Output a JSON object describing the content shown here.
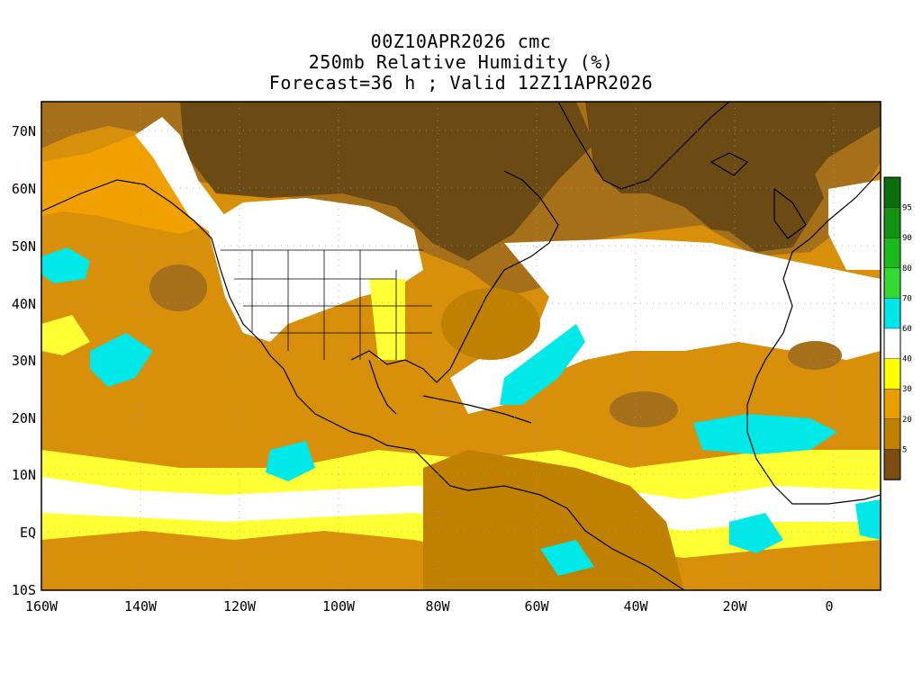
{
  "title": {
    "line1": "00Z10APR2026 cmc",
    "line2": "250mb Relative Humidity (%)",
    "line3": "Forecast=36 h ; Valid 12Z11APR2026"
  },
  "axes": {
    "lat_labels": [
      "70N",
      "60N",
      "50N",
      "40N",
      "30N",
      "20N",
      "10N",
      "EQ",
      "10S"
    ],
    "lon_labels": [
      "160W",
      "140W",
      "120W",
      "100W",
      "80W",
      "60W",
      "40W",
      "20W",
      "0"
    ]
  },
  "colorbar": {
    "tick_labels": [
      "95",
      "90",
      "80",
      "70",
      "60",
      "40",
      "30",
      "20",
      "5"
    ],
    "colors": [
      "#0a6e0a",
      "#129412",
      "#1cb81c",
      "#34d934",
      "#00e5e5",
      "#ffffff",
      "#ffff00",
      "#e8a000",
      "#c08000",
      "#7a4d10"
    ]
  },
  "map": {
    "colors": {
      "very_dry": "#6b4a14",
      "dry": "#a6701a",
      "moderate": "#d8900a",
      "orange": "#f0a000",
      "yellow": "#ffff33",
      "moist": "#ffffff",
      "cyan": "#00e8e8"
    }
  }
}
